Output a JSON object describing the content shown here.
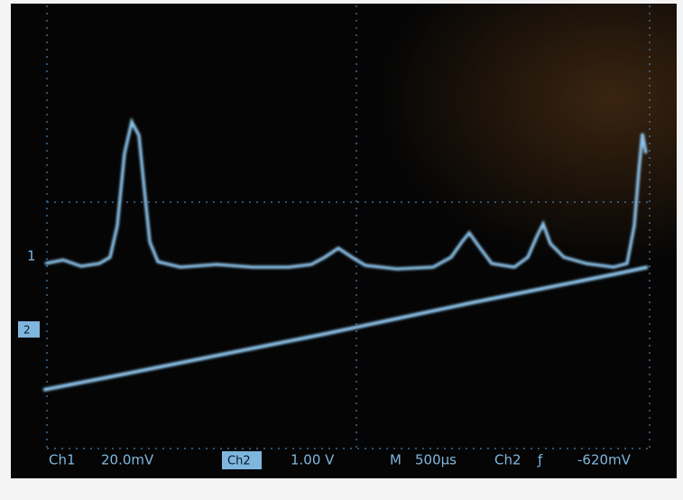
{
  "screen": {
    "markers": {
      "ch1": "1",
      "ch2": "2"
    },
    "status_bar": {
      "ch1_label": "Ch1",
      "ch1_scale": "20.0mV",
      "ch2_badge": "Ch2",
      "ch2_scale": "1.00 V",
      "time_label": "M",
      "time_scale": "500µs",
      "trigger_source": "Ch2",
      "trigger_slope": "ƒ",
      "trigger_level": "-620mV"
    }
  }
}
